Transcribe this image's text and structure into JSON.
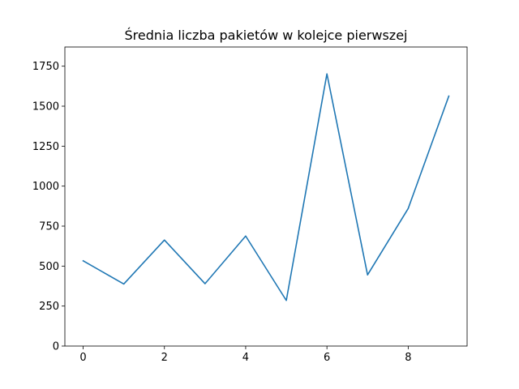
{
  "chart_data": {
    "type": "line",
    "title": "Średnia liczba pakietów w kolejce pierwszej",
    "xlabel": "",
    "ylabel": "",
    "x": [
      0,
      1,
      2,
      3,
      4,
      5,
      6,
      7,
      8,
      9
    ],
    "series": [
      {
        "values": [
          533,
          388,
          663,
          390,
          688,
          285,
          1702,
          445,
          860,
          1563
        ],
        "color": "#1f77b4"
      }
    ],
    "xlim": [
      -0.45,
      9.45
    ],
    "ylim": [
      0,
      1870
    ],
    "xticks": [
      0,
      2,
      4,
      6,
      8
    ],
    "xtick_labels": [
      "0",
      "2",
      "4",
      "6",
      "8"
    ],
    "yticks": [
      0,
      250,
      500,
      750,
      1000,
      1250,
      1500,
      1750
    ],
    "ytick_labels": [
      "0",
      "250",
      "500",
      "750",
      "1000",
      "1250",
      "1500",
      "1750"
    ],
    "grid": false,
    "legend": "none"
  }
}
